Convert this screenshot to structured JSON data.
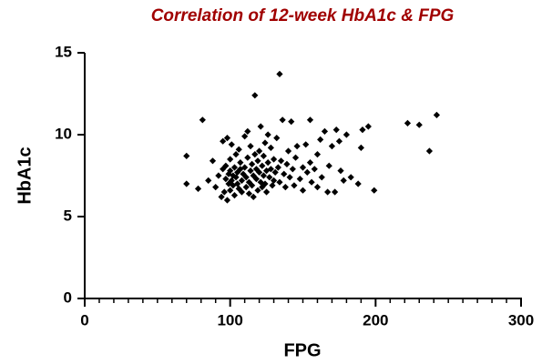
{
  "chart_data": {
    "type": "scatter",
    "title": "Correlation of 12-week HbA1c & FPG",
    "x_label": "FPG",
    "y_label": "HbA1c",
    "xlim": [
      0,
      300
    ],
    "xticks": [
      0,
      100,
      200,
      300
    ],
    "xminorticks": [
      10,
      20,
      30,
      40,
      50,
      60,
      70,
      80,
      90,
      110,
      120,
      130,
      140,
      150,
      160,
      170,
      180,
      190,
      210,
      220,
      230,
      240,
      250,
      260,
      270,
      280,
      290
    ],
    "ylim": [
      0,
      15
    ],
    "yticks": [
      0,
      5,
      10,
      15
    ],
    "x": [
      70,
      70,
      78,
      81,
      85,
      88,
      90,
      92,
      94,
      95,
      95,
      96,
      97,
      97,
      98,
      98,
      99,
      99,
      100,
      100,
      100,
      101,
      101,
      102,
      102,
      103,
      103,
      104,
      104,
      105,
      105,
      106,
      106,
      107,
      107,
      108,
      108,
      109,
      110,
      110,
      111,
      111,
      112,
      112,
      113,
      113,
      114,
      114,
      115,
      115,
      116,
      116,
      117,
      117,
      118,
      118,
      119,
      119,
      120,
      120,
      121,
      121,
      122,
      122,
      123,
      123,
      124,
      124,
      125,
      125,
      126,
      126,
      127,
      128,
      128,
      129,
      130,
      130,
      131,
      132,
      133,
      134,
      134,
      135,
      136,
      137,
      138,
      139,
      140,
      141,
      142,
      143,
      144,
      145,
      146,
      148,
      150,
      150,
      152,
      153,
      155,
      155,
      156,
      158,
      160,
      160,
      162,
      163,
      165,
      167,
      168,
      170,
      172,
      173,
      175,
      176,
      178,
      180,
      183,
      188,
      190,
      191,
      195,
      199,
      222,
      230,
      237,
      242
    ],
    "series": [
      {
        "color": "#000000",
        "values": [
          8.7,
          7.0,
          6.7,
          10.9,
          7.2,
          8.4,
          6.8,
          7.5,
          6.2,
          7.9,
          9.6,
          6.5,
          7.3,
          8.1,
          6.0,
          9.8,
          7.0,
          7.6,
          6.6,
          7.8,
          8.5,
          7.2,
          9.4,
          6.9,
          7.5,
          8.0,
          6.3,
          7.4,
          8.8,
          7.0,
          7.7,
          6.7,
          9.1,
          7.9,
          8.3,
          7.2,
          6.5,
          7.6,
          8.0,
          9.9,
          6.8,
          7.4,
          10.2,
          8.6,
          7.1,
          6.4,
          7.8,
          9.3,
          6.9,
          8.2,
          7.5,
          6.2,
          12.4,
          8.8,
          7.3,
          7.9,
          6.6,
          8.4,
          7.7,
          9.0,
          7.1,
          10.5,
          8.1,
          6.8,
          7.5,
          8.7,
          7.0,
          9.5,
          7.8,
          6.5,
          8.3,
          10.0,
          7.4,
          7.9,
          9.2,
          6.9,
          8.5,
          7.2,
          7.7,
          9.8,
          8.0,
          13.7,
          7.1,
          8.4,
          10.9,
          7.6,
          6.8,
          8.2,
          9.0,
          7.4,
          10.8,
          7.9,
          6.9,
          8.6,
          9.3,
          7.3,
          8.0,
          6.6,
          9.4,
          7.7,
          10.9,
          8.3,
          7.1,
          7.9,
          8.8,
          6.8,
          9.7,
          7.4,
          10.2,
          6.5,
          8.1,
          9.3,
          6.5,
          10.3,
          9.6,
          7.8,
          7.2,
          10.0,
          7.4,
          7.0,
          9.2,
          10.3,
          10.5,
          6.6,
          10.7,
          10.6,
          9.0,
          11.2
        ]
      }
    ]
  }
}
